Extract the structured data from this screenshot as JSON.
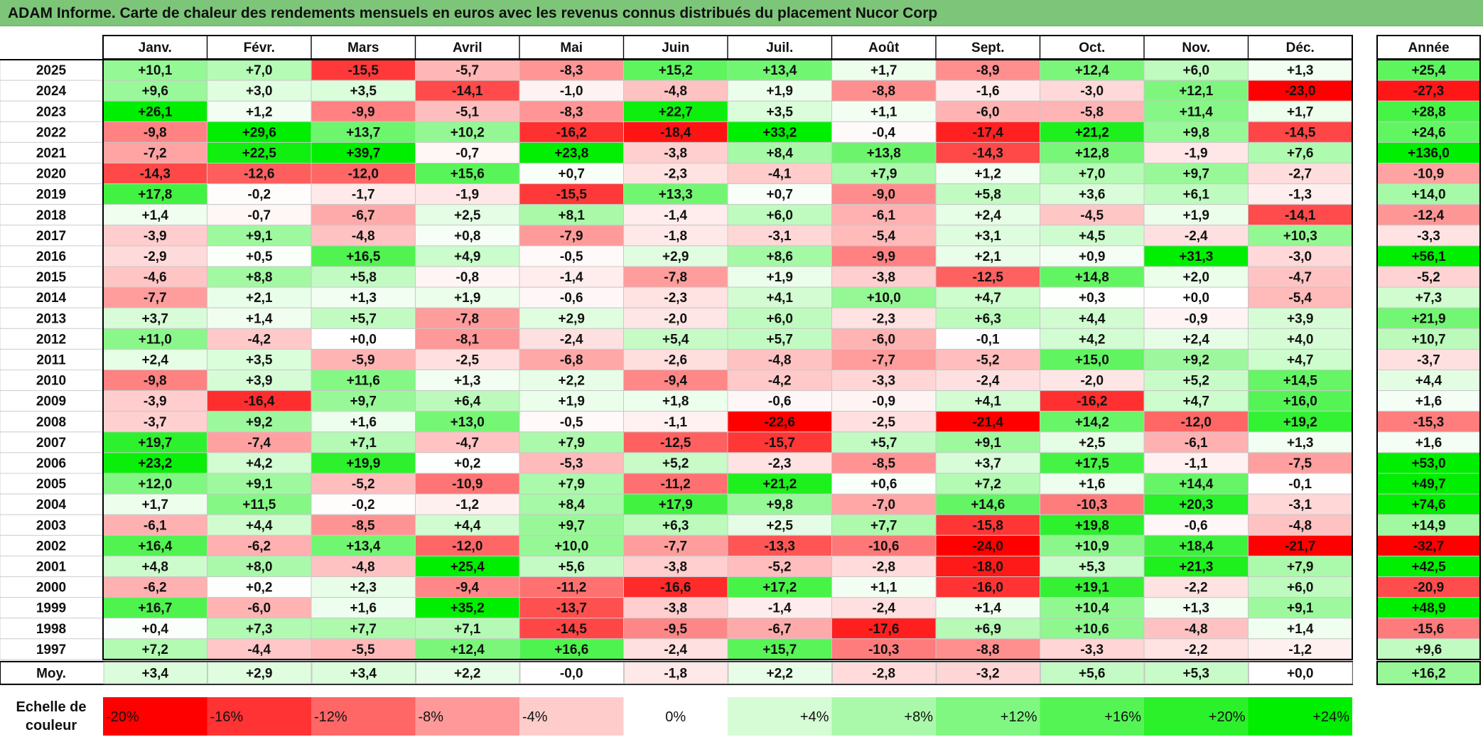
{
  "title": "ADAM Informe. Carte de chaleur des rendements mensuels en euros avec les revenus connus distribués du placement Nucor Corp",
  "chart_data": {
    "type": "heatmap",
    "title": "ADAM Informe. Carte de chaleur des rendements mensuels en euros avec les revenus connus distribués du placement Nucor Corp",
    "columns": [
      "Janv.",
      "Févr.",
      "Mars",
      "Avril",
      "Mai",
      "Juin",
      "Juil.",
      "Août",
      "Sept.",
      "Oct.",
      "Nov.",
      "Déc."
    ],
    "year_header": "Année",
    "rows": [
      {
        "label": "2025",
        "values": [
          "+10,1",
          "+7,0",
          "-15,5",
          "-5,7",
          "-8,3",
          "+15,2",
          "+13,4",
          "+1,7",
          "-8,9",
          "+12,4",
          "+6,0",
          "+1,3"
        ],
        "year": "+25,4"
      },
      {
        "label": "2024",
        "values": [
          "+9,6",
          "+3,0",
          "+3,5",
          "-14,1",
          "-1,0",
          "-4,8",
          "+1,9",
          "-8,8",
          "-1,6",
          "-3,0",
          "+12,1",
          "-23,0"
        ],
        "year": "-27,3"
      },
      {
        "label": "2023",
        "values": [
          "+26,1",
          "+1,2",
          "-9,9",
          "-5,1",
          "-8,3",
          "+22,7",
          "+3,5",
          "+1,1",
          "-6,0",
          "-5,8",
          "+11,4",
          "+1,7"
        ],
        "year": "+28,8"
      },
      {
        "label": "2022",
        "values": [
          "-9,8",
          "+29,6",
          "+13,7",
          "+10,2",
          "-16,2",
          "-18,4",
          "+33,2",
          "-0,4",
          "-17,4",
          "+21,2",
          "+9,8",
          "-14,5"
        ],
        "year": "+24,6"
      },
      {
        "label": "2021",
        "values": [
          "-7,2",
          "+22,5",
          "+39,7",
          "-0,7",
          "+23,8",
          "-3,8",
          "+8,4",
          "+13,8",
          "-14,3",
          "+12,8",
          "-1,9",
          "+7,6"
        ],
        "year": "+136,0"
      },
      {
        "label": "2020",
        "values": [
          "-14,3",
          "-12,6",
          "-12,0",
          "+15,6",
          "+0,7",
          "-2,3",
          "-4,1",
          "+7,9",
          "+1,2",
          "+7,0",
          "+9,7",
          "-2,7"
        ],
        "year": "-10,9"
      },
      {
        "label": "2019",
        "values": [
          "+17,8",
          "-0,2",
          "-1,7",
          "-1,9",
          "-15,5",
          "+13,3",
          "+0,7",
          "-9,0",
          "+5,8",
          "+3,6",
          "+6,1",
          "-1,3"
        ],
        "year": "+14,0"
      },
      {
        "label": "2018",
        "values": [
          "+1,4",
          "-0,7",
          "-6,7",
          "+2,5",
          "+8,1",
          "-1,4",
          "+6,0",
          "-6,1",
          "+2,4",
          "-4,5",
          "+1,9",
          "-14,1"
        ],
        "year": "-12,4"
      },
      {
        "label": "2017",
        "values": [
          "-3,9",
          "+9,1",
          "-4,8",
          "+0,8",
          "-7,9",
          "-1,8",
          "-3,1",
          "-5,4",
          "+3,1",
          "+4,5",
          "-2,4",
          "+10,3"
        ],
        "year": "-3,3"
      },
      {
        "label": "2016",
        "values": [
          "-2,9",
          "+0,5",
          "+16,5",
          "+4,9",
          "-0,5",
          "+2,9",
          "+8,6",
          "-9,9",
          "+2,1",
          "+0,9",
          "+31,3",
          "-3,0"
        ],
        "year": "+56,1"
      },
      {
        "label": "2015",
        "values": [
          "-4,6",
          "+8,8",
          "+5,8",
          "-0,8",
          "-1,4",
          "-7,8",
          "+1,9",
          "-3,8",
          "-12,5",
          "+14,8",
          "+2,0",
          "-4,7"
        ],
        "year": "-5,2"
      },
      {
        "label": "2014",
        "values": [
          "-7,7",
          "+2,1",
          "+1,3",
          "+1,9",
          "-0,6",
          "-2,3",
          "+4,1",
          "+10,0",
          "+4,7",
          "+0,3",
          "+0,0",
          "-5,4"
        ],
        "year": "+7,3"
      },
      {
        "label": "2013",
        "values": [
          "+3,7",
          "+1,4",
          "+5,7",
          "-7,8",
          "+2,9",
          "-2,0",
          "+6,0",
          "-2,3",
          "+6,3",
          "+4,4",
          "-0,9",
          "+3,9"
        ],
        "year": "+21,9"
      },
      {
        "label": "2012",
        "values": [
          "+11,0",
          "-4,2",
          "+0,0",
          "-8,1",
          "-2,4",
          "+5,4",
          "+5,7",
          "-6,0",
          "-0,1",
          "+4,2",
          "+2,4",
          "+4,0"
        ],
        "year": "+10,7"
      },
      {
        "label": "2011",
        "values": [
          "+2,4",
          "+3,5",
          "-5,9",
          "-2,5",
          "-6,8",
          "-2,6",
          "-4,8",
          "-7,7",
          "-5,2",
          "+15,0",
          "+9,2",
          "+4,7"
        ],
        "year": "-3,7"
      },
      {
        "label": "2010",
        "values": [
          "-9,8",
          "+3,9",
          "+11,6",
          "+1,3",
          "+2,2",
          "-9,4",
          "-4,2",
          "-3,3",
          "-2,4",
          "-2,0",
          "+5,2",
          "+14,5"
        ],
        "year": "+4,4"
      },
      {
        "label": "2009",
        "values": [
          "-3,9",
          "-16,4",
          "+9,7",
          "+6,4",
          "+1,9",
          "+1,8",
          "-0,6",
          "-0,9",
          "+4,1",
          "-16,2",
          "+4,7",
          "+16,0"
        ],
        "year": "+1,6"
      },
      {
        "label": "2008",
        "values": [
          "-3,7",
          "+9,2",
          "+1,6",
          "+13,0",
          "-0,5",
          "-1,1",
          "-22,6",
          "-2,5",
          "-21,4",
          "+14,2",
          "-12,0",
          "+19,2"
        ],
        "year": "-15,3"
      },
      {
        "label": "2007",
        "values": [
          "+19,7",
          "-7,4",
          "+7,1",
          "-4,7",
          "+7,9",
          "-12,5",
          "-15,7",
          "+5,7",
          "+9,1",
          "+2,5",
          "-6,1",
          "+1,3"
        ],
        "year": "+1,6"
      },
      {
        "label": "2006",
        "values": [
          "+23,2",
          "+4,2",
          "+19,9",
          "+0,2",
          "-5,3",
          "+5,2",
          "-2,3",
          "-8,5",
          "+3,7",
          "+17,5",
          "-1,1",
          "-7,5"
        ],
        "year": "+53,0"
      },
      {
        "label": "2005",
        "values": [
          "+12,0",
          "+9,1",
          "-5,2",
          "-10,9",
          "+7,9",
          "-11,2",
          "+21,2",
          "+0,6",
          "+7,2",
          "+1,6",
          "+14,4",
          "-0,1"
        ],
        "year": "+49,7"
      },
      {
        "label": "2004",
        "values": [
          "+1,7",
          "+11,5",
          "-0,2",
          "-1,2",
          "+8,4",
          "+17,9",
          "+9,8",
          "-7,0",
          "+14,6",
          "-10,3",
          "+20,3",
          "-3,1"
        ],
        "year": "+74,6"
      },
      {
        "label": "2003",
        "values": [
          "-6,1",
          "+4,4",
          "-8,5",
          "+4,4",
          "+9,7",
          "+6,3",
          "+2,5",
          "+7,7",
          "-15,8",
          "+19,8",
          "-0,6",
          "-4,8"
        ],
        "year": "+14,9"
      },
      {
        "label": "2002",
        "values": [
          "+16,4",
          "-6,2",
          "+13,4",
          "-12,0",
          "+10,0",
          "-7,7",
          "-13,3",
          "-10,6",
          "-24,0",
          "+10,9",
          "+18,4",
          "-21,7"
        ],
        "year": "-32,7"
      },
      {
        "label": "2001",
        "values": [
          "+4,8",
          "+8,0",
          "-4,8",
          "+25,4",
          "+5,6",
          "-3,8",
          "-5,2",
          "-2,8",
          "-18,0",
          "+5,3",
          "+21,3",
          "+7,9"
        ],
        "year": "+42,5"
      },
      {
        "label": "2000",
        "values": [
          "-6,2",
          "+0,2",
          "+2,3",
          "-9,4",
          "-11,2",
          "-16,6",
          "+17,2",
          "+1,1",
          "-16,0",
          "+19,1",
          "-2,2",
          "+6,0"
        ],
        "year": "-20,9"
      },
      {
        "label": "1999",
        "values": [
          "+16,7",
          "-6,0",
          "+1,6",
          "+35,2",
          "-13,7",
          "-3,8",
          "-1,4",
          "-2,4",
          "+1,4",
          "+10,4",
          "+1,3",
          "+9,1"
        ],
        "year": "+48,9"
      },
      {
        "label": "1998",
        "values": [
          "+0,4",
          "+7,3",
          "+7,7",
          "+7,1",
          "-14,5",
          "-9,5",
          "-6,7",
          "-17,6",
          "+6,9",
          "+10,6",
          "-4,8",
          "+1,4"
        ],
        "year": "-15,6"
      },
      {
        "label": "1997",
        "values": [
          "+7,2",
          "-4,4",
          "-5,5",
          "+12,4",
          "+16,6",
          "-2,4",
          "+15,7",
          "-10,3",
          "-8,8",
          "-3,3",
          "-2,2",
          "-1,2"
        ],
        "year": "+9,6"
      }
    ],
    "average": {
      "label": "Moy.",
      "values": [
        "+3,4",
        "+2,9",
        "+3,4",
        "+2,2",
        "-0,0",
        "-1,8",
        "+2,2",
        "-2,8",
        "-3,2",
        "+5,6",
        "+5,3",
        "+0,0"
      ],
      "year": "+16,2"
    },
    "color_scale": {
      "label": [
        "Echelle de",
        "couleur"
      ],
      "stops": [
        "-20%",
        "-16%",
        "-12%",
        "-8%",
        "-4%",
        "0%",
        "+4%",
        "+8%",
        "+12%",
        "+16%",
        "+20%",
        "+24%"
      ],
      "negative_color": "#ff0000",
      "positive_color": "#00ee00",
      "neutral_color": "#ffffff"
    }
  }
}
